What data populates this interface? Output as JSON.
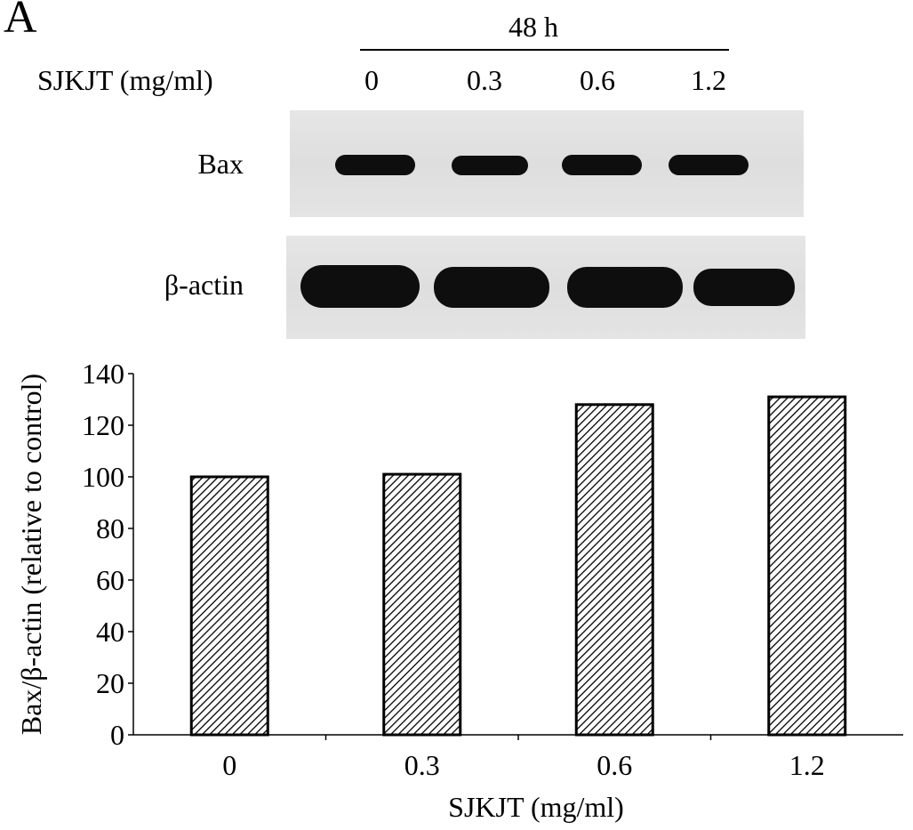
{
  "panel_letter": "A",
  "header": {
    "time_label": "48 h",
    "dose_axis_title": "SJKJT (mg/ml)",
    "doses": [
      "0",
      "0.3",
      "0.6",
      "1.2"
    ]
  },
  "blots": [
    {
      "label": "Bax"
    },
    {
      "label": "β-actin"
    }
  ],
  "chart_data": {
    "type": "bar",
    "categories": [
      "0",
      "0.3",
      "0.6",
      "1.2"
    ],
    "values": [
      100,
      101,
      128,
      131
    ],
    "xlabel": "SJKJT (mg/ml)",
    "ylabel": "Bax/β-actin (relative to control)",
    "ylim": [
      0,
      140
    ],
    "yticks": [
      0,
      20,
      40,
      60,
      80,
      100,
      120,
      140
    ],
    "grid": false,
    "bar_pattern": "diagonal hatch",
    "bar_color": "#000000"
  }
}
